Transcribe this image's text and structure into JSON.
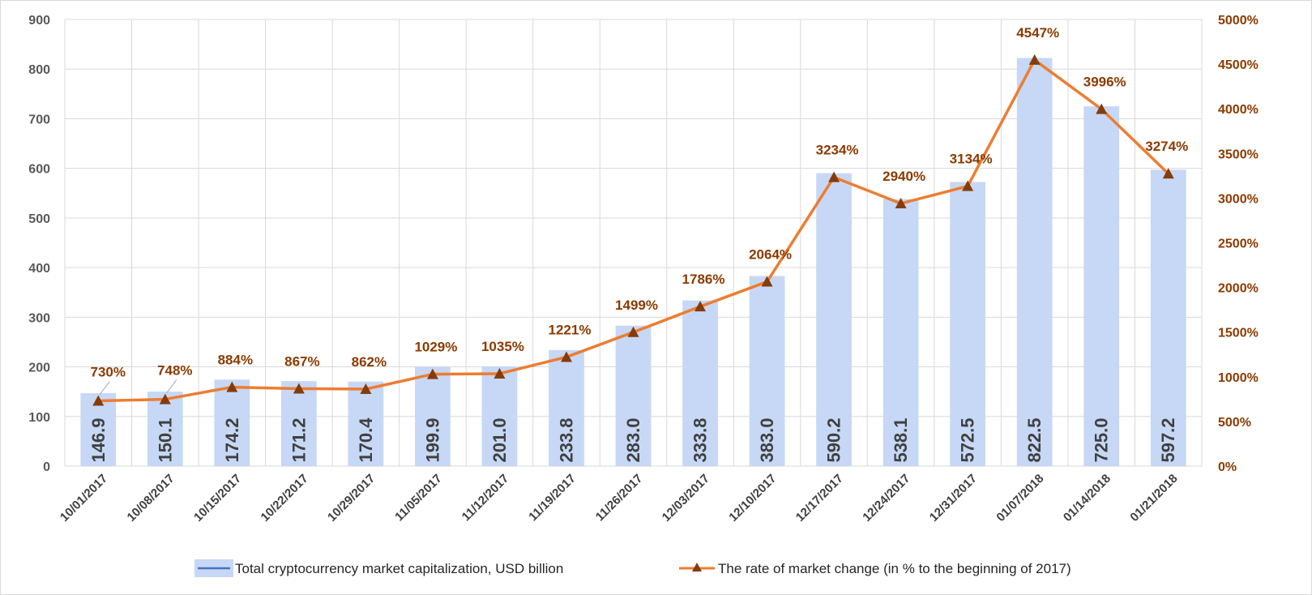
{
  "chart_data": {
    "type": "bar",
    "categories": [
      "10/01/2017",
      "10/08/2017",
      "10/15/2017",
      "10/22/2017",
      "10/29/2017",
      "11/05/2017",
      "11/12/2017",
      "11/19/2017",
      "11/26/2017",
      "12/03/2017",
      "12/10/2017",
      "12/17/2017",
      "12/24/2017",
      "12/31/2017",
      "01/07/2018",
      "01/14/2018",
      "01/21/2018"
    ],
    "series": [
      {
        "name": "Total cryptocurrency market capitalization, USD billion",
        "type": "bar",
        "axis": "left",
        "values": [
          146.9,
          150.1,
          174.2,
          171.2,
          170.4,
          199.9,
          201.0,
          233.8,
          283.0,
          333.8,
          383.0,
          590.2,
          538.1,
          572.5,
          822.5,
          725.0,
          597.2
        ],
        "labels": [
          "146.9",
          "150.1",
          "174.2",
          "171.2",
          "170.4",
          "199.9",
          "201.0",
          "233.8",
          "283.0",
          "333.8",
          "383.0",
          "590.2",
          "538.1",
          "572.5",
          "822.5",
          "725.0",
          "597.2"
        ]
      },
      {
        "name": "The rate of market change (in % to the beginning of 2017)",
        "type": "line",
        "axis": "right",
        "values": [
          730,
          748,
          884,
          867,
          862,
          1029,
          1035,
          1221,
          1499,
          1786,
          2064,
          3234,
          2940,
          3134,
          4547,
          3996,
          3274
        ],
        "labels": [
          "730%",
          "748%",
          "884%",
          "867%",
          "862%",
          "1029%",
          "1035%",
          "1221%",
          "1499%",
          "1786%",
          "2064%",
          "3234%",
          "2940%",
          "3134%",
          "4547%",
          "3996%",
          "3274%"
        ]
      }
    ],
    "y_left": {
      "ylim": [
        0,
        900
      ],
      "ticks": [
        "0",
        "100",
        "200",
        "300",
        "400",
        "500",
        "600",
        "700",
        "800",
        "900"
      ]
    },
    "y_right": {
      "ylim": [
        0,
        5000
      ],
      "ticks": [
        "0%",
        "500%",
        "1000%",
        "1500%",
        "2000%",
        "2500%",
        "3000%",
        "3500%",
        "4000%",
        "4500%",
        "5000%"
      ]
    },
    "grid": true,
    "legend_position": "bottom",
    "colors": {
      "bar": "#c6d8f5",
      "line": "#ed7d31",
      "marker": "#843c0c",
      "line_label": "#8b3a00",
      "grid": "#d9d9d9"
    }
  }
}
